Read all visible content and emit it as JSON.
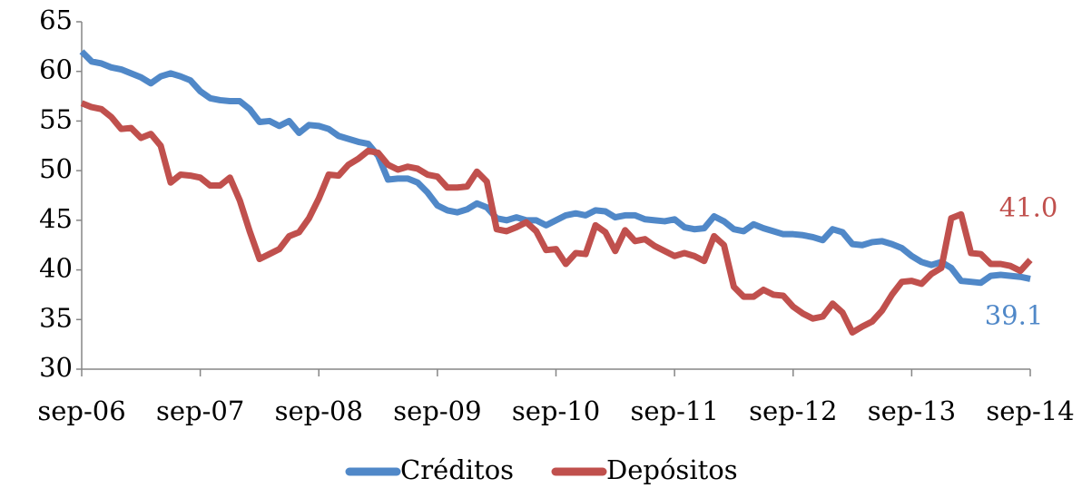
{
  "chart_data": {
    "type": "line",
    "categories": [
      "sep-06",
      null,
      null,
      null,
      null,
      null,
      null,
      null,
      null,
      null,
      null,
      null,
      "sep-07",
      null,
      null,
      null,
      null,
      null,
      null,
      null,
      null,
      null,
      null,
      null,
      "sep-08",
      null,
      null,
      null,
      null,
      null,
      null,
      null,
      null,
      null,
      null,
      null,
      "sep-09",
      null,
      null,
      null,
      null,
      null,
      null,
      null,
      null,
      null,
      null,
      null,
      "sep-10",
      null,
      null,
      null,
      null,
      null,
      null,
      null,
      null,
      null,
      null,
      null,
      "sep-11",
      null,
      null,
      null,
      null,
      null,
      null,
      null,
      null,
      null,
      null,
      null,
      "sep-12",
      null,
      null,
      null,
      null,
      null,
      null,
      null,
      null,
      null,
      null,
      null,
      "sep-13",
      null,
      null,
      null,
      null,
      null,
      null,
      null,
      null,
      null,
      null,
      null,
      "sep-14"
    ],
    "series": [
      {
        "name": "Créditos",
        "color": "#5088c8",
        "values": [
          62,
          61,
          60.8,
          60.4,
          60.2,
          59.8,
          59.4,
          58.8,
          59.5,
          59.8,
          59.5,
          59.1,
          58,
          57.3,
          57.1,
          57,
          57,
          56.2,
          54.9,
          55,
          54.5,
          55,
          53.8,
          54.6,
          54.5,
          54.2,
          53.5,
          53.2,
          52.9,
          52.7,
          51.5,
          49.1,
          49.2,
          49.2,
          48.8,
          47.8,
          46.5,
          46,
          45.8,
          46.1,
          46.7,
          46.3,
          45.2,
          45,
          45.3,
          45,
          45,
          44.5,
          45,
          45.5,
          45.7,
          45.5,
          46,
          45.9,
          45.3,
          45.5,
          45.5,
          45.1,
          45,
          44.9,
          45.1,
          44.3,
          44.1,
          44.2,
          45.4,
          44.9,
          44.1,
          43.9,
          44.6,
          44.2,
          43.9,
          43.6,
          43.6,
          43.5,
          43.3,
          43,
          44.1,
          43.8,
          42.6,
          42.5,
          42.8,
          42.9,
          42.6,
          42.2,
          41.4,
          40.8,
          40.5,
          40.8,
          40.2,
          38.9,
          38.8,
          38.7,
          39.4,
          39.5,
          39.4,
          39.3,
          39.1
        ],
        "value_labels": [
          null,
          null,
          null,
          null,
          null,
          null,
          null,
          null,
          null,
          null,
          null,
          null,
          null,
          null,
          null,
          null,
          null,
          null,
          null,
          null,
          null,
          null,
          null,
          null,
          null,
          null,
          null,
          null,
          null,
          null,
          null,
          null,
          null,
          null,
          null,
          null,
          null,
          null,
          null,
          null,
          null,
          null,
          null,
          null,
          null,
          null,
          null,
          null,
          null,
          null,
          null,
          null,
          null,
          null,
          null,
          null,
          null,
          null,
          null,
          null,
          null,
          null,
          null,
          null,
          null,
          null,
          null,
          null,
          null,
          null,
          null,
          null,
          null,
          null,
          null,
          null,
          null,
          null,
          null,
          null,
          null,
          null,
          null,
          null,
          null,
          null,
          null,
          null,
          null,
          null,
          null,
          null,
          null,
          null,
          null,
          null,
          "39.1"
        ]
      },
      {
        "name": "Depósitos",
        "color": "#c0504d",
        "values": [
          56.8,
          56.4,
          56.2,
          55.4,
          54.2,
          54.3,
          53.3,
          53.7,
          52.5,
          48.8,
          49.6,
          49.5,
          49.3,
          48.5,
          48.5,
          49.3,
          47,
          43.9,
          41.1,
          41.6,
          42.1,
          43.4,
          43.8,
          45.2,
          47.2,
          49.6,
          49.5,
          50.6,
          51.2,
          52,
          51.8,
          50.6,
          50.1,
          50.4,
          50.2,
          49.6,
          49.4,
          48.3,
          48.3,
          48.4,
          49.9,
          48.9,
          44.1,
          43.9,
          44.3,
          44.8,
          43.9,
          42,
          42.1,
          40.6,
          41.7,
          41.6,
          44.5,
          43.8,
          41.9,
          44,
          42.9,
          43.1,
          42.4,
          41.9,
          41.4,
          41.7,
          41.4,
          40.9,
          43.4,
          42.5,
          38.3,
          37.3,
          37.3,
          38,
          37.5,
          37.4,
          36.3,
          35.6,
          35.1,
          35.3,
          36.6,
          35.7,
          33.7,
          34.3,
          34.8,
          35.9,
          37.5,
          38.8,
          38.9,
          38.6,
          39.6,
          40.2,
          45.2,
          45.6,
          41.7,
          41.6,
          40.6,
          40.6,
          40.4,
          39.9,
          41
        ],
        "value_labels": [
          null,
          null,
          null,
          null,
          null,
          null,
          null,
          null,
          null,
          null,
          null,
          null,
          null,
          null,
          null,
          null,
          null,
          null,
          null,
          null,
          null,
          null,
          null,
          null,
          null,
          null,
          null,
          null,
          null,
          null,
          null,
          null,
          null,
          null,
          null,
          null,
          null,
          null,
          null,
          null,
          null,
          null,
          null,
          null,
          null,
          null,
          null,
          null,
          null,
          null,
          null,
          null,
          null,
          null,
          null,
          null,
          null,
          null,
          null,
          null,
          null,
          null,
          null,
          null,
          null,
          null,
          null,
          null,
          null,
          null,
          null,
          null,
          null,
          null,
          null,
          null,
          null,
          null,
          null,
          null,
          null,
          null,
          null,
          null,
          null,
          null,
          null,
          null,
          null,
          null,
          null,
          null,
          null,
          null,
          null,
          null,
          "41.0"
        ]
      }
    ],
    "ylim": [
      30,
      65
    ],
    "yticks": [
      30,
      35,
      40,
      45,
      50,
      55,
      60,
      65
    ],
    "grid": false,
    "legend": "bottom"
  }
}
